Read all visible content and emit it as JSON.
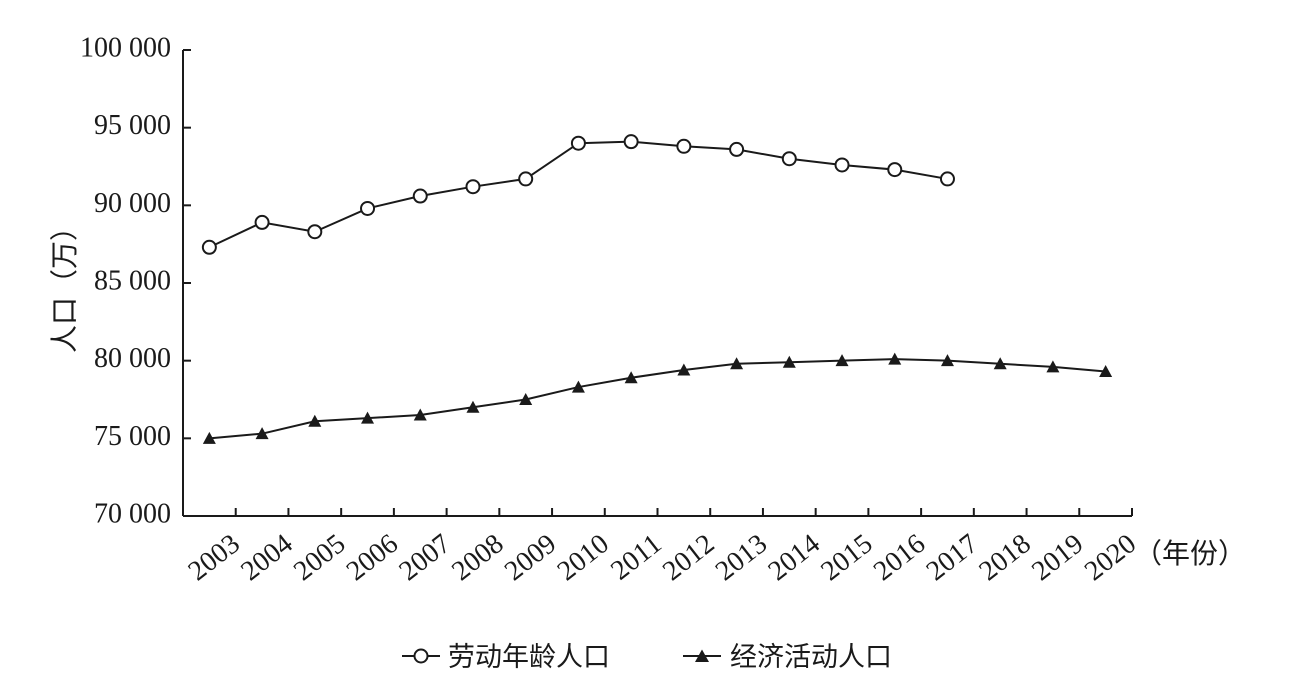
{
  "chart_data": {
    "type": "line",
    "title": "",
    "xlabel": "（年份）",
    "ylabel": "人口（万）",
    "categories": [
      "2003",
      "2004",
      "2005",
      "2006",
      "2007",
      "2008",
      "2009",
      "2010",
      "2011",
      "2012",
      "2013",
      "2014",
      "2015",
      "2016",
      "2017",
      "2018",
      "2019",
      "2020"
    ],
    "y_ticks": [
      70000,
      75000,
      80000,
      85000,
      90000,
      95000,
      100000
    ],
    "y_tick_labels": [
      "70 000",
      "75 000",
      "80 000",
      "85 000",
      "90 000",
      "95 000",
      "100 000"
    ],
    "ylim": [
      70000,
      100000
    ],
    "grid": false,
    "legend_position": "bottom",
    "series": [
      {
        "name": "劳动年龄人口",
        "marker": "open-circle",
        "values": [
          87300,
          88900,
          88300,
          89800,
          90600,
          91200,
          91700,
          94000,
          94100,
          93800,
          93600,
          93000,
          92600,
          92300,
          91700,
          null,
          null,
          null
        ]
      },
      {
        "name": "经济活动人口",
        "marker": "filled-triangle",
        "values": [
          75000,
          75300,
          76100,
          76300,
          76500,
          77000,
          77500,
          78300,
          78900,
          79400,
          79800,
          79900,
          80000,
          80100,
          80000,
          79800,
          79600,
          79300
        ]
      }
    ],
    "colors": {
      "line": "#1a1a1a",
      "marker_fill": "#1a1a1a",
      "open_marker_fill": "#ffffff"
    }
  }
}
